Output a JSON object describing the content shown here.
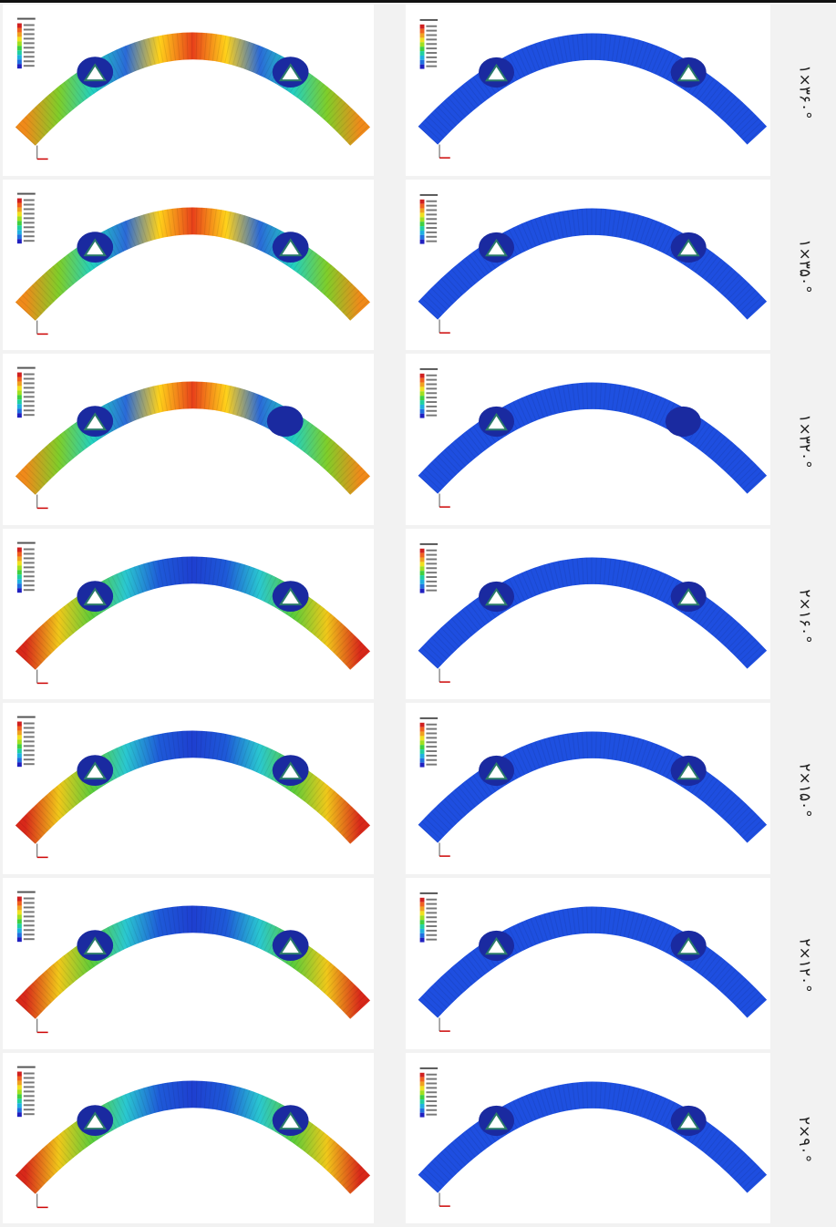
{
  "rows": [
    {
      "label": "۱×۳۶۰°"
    },
    {
      "label": "۱×۳۵۰°"
    },
    {
      "label": "۱×۳۲۰°"
    },
    {
      "label": "۲×۱۶۰°"
    },
    {
      "label": "۲×۱۵۰°"
    },
    {
      "label": "۲×۱۲۰°"
    },
    {
      "label": "۲×۹۰°"
    }
  ]
}
